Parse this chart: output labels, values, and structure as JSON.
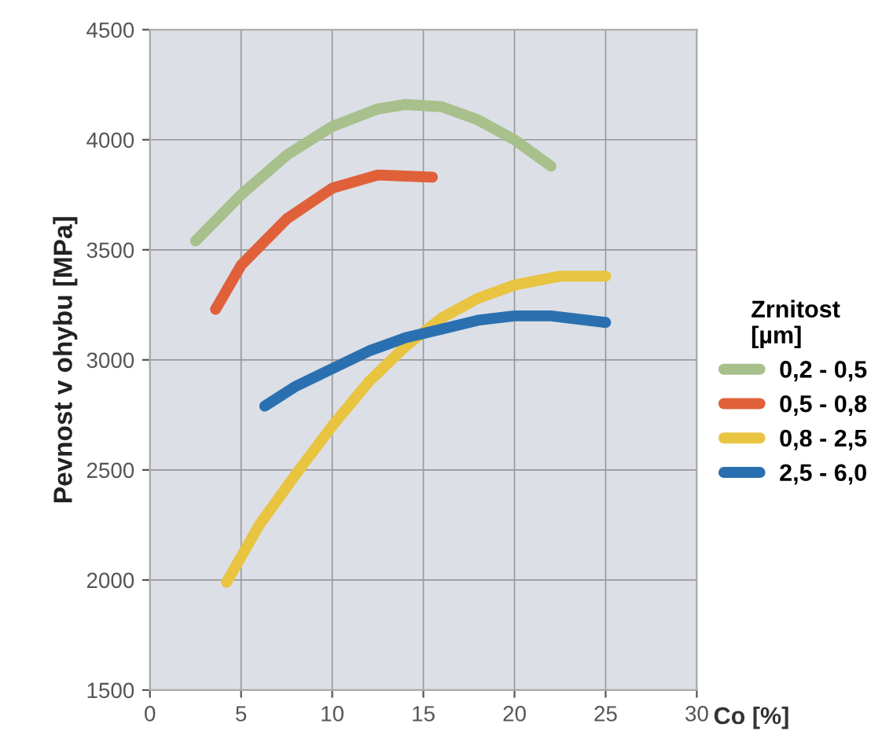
{
  "chart_data": {
    "type": "line",
    "xlabel": "Co [%]",
    "ylabel": "Pevnost v ohybu [MPa]",
    "legend_title": "Zrnitost\n[µm]",
    "legend": "right",
    "grid": true,
    "line_style": "solid",
    "xlim": [
      0,
      30
    ],
    "ylim": [
      1500,
      4500
    ],
    "xticks": [
      0,
      5,
      10,
      15,
      20,
      25,
      30
    ],
    "yticks": [
      1500,
      2000,
      2500,
      3000,
      3500,
      4000,
      4500
    ],
    "series": [
      {
        "name": "0,2 - 0,5",
        "color": "#a8c08c",
        "x": [
          2.5,
          5,
          7.5,
          10,
          12.5,
          14,
          16,
          18,
          20,
          22
        ],
        "values": [
          3540,
          3750,
          3930,
          4060,
          4140,
          4160,
          4150,
          4090,
          4000,
          3880
        ]
      },
      {
        "name": "0,5 - 0,8",
        "color": "#e0603a",
        "x": [
          3.6,
          5,
          7.5,
          10,
          12.5,
          15.5
        ],
        "values": [
          3230,
          3430,
          3640,
          3780,
          3840,
          3830
        ]
      },
      {
        "name": "0,8 - 2,5",
        "color": "#e8c440",
        "x": [
          4.2,
          6,
          8,
          10,
          12,
          14,
          16,
          18,
          20,
          22.5,
          25
        ],
        "values": [
          1990,
          2250,
          2480,
          2700,
          2900,
          3060,
          3190,
          3280,
          3340,
          3380,
          3380
        ]
      },
      {
        "name": "2,5 - 6,0",
        "color": "#2a70b0",
        "x": [
          6.3,
          8,
          10,
          12,
          14,
          16,
          18,
          20,
          22,
          25
        ],
        "values": [
          2790,
          2880,
          2960,
          3040,
          3100,
          3140,
          3180,
          3200,
          3200,
          3170
        ]
      }
    ]
  }
}
